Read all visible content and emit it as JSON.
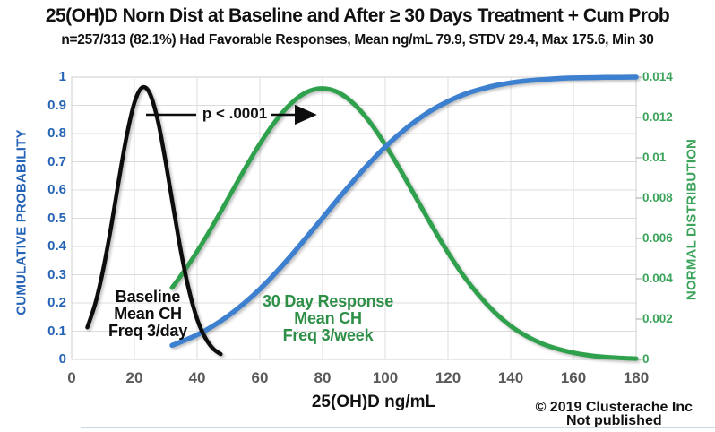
{
  "header": {
    "title": "25(OH)D Norn Dist at Baseline and After ≥ 30 Days Treatment + Cum Prob",
    "subtitle": "n=257/313 (82.1%) Had Favorable Responses, Mean ng/mL 79.9, STDV 29.4, Max 175.6, Min 30"
  },
  "chart_data": {
    "type": "line",
    "grid": true,
    "legend": "none",
    "x_axis": {
      "label": "25(OH)D ng/mL",
      "range": [
        0,
        180
      ],
      "tick_labels": [
        "0",
        "20",
        "40",
        "60",
        "80",
        "100",
        "120",
        "140",
        "160",
        "180"
      ]
    },
    "y_left": {
      "label": "CUMULATIVE PROBABILITY",
      "range": [
        0,
        1
      ],
      "tick_labels_top_to_bottom": [
        "1",
        "0.9",
        "0.8",
        "0.7",
        "0.6",
        "0.5",
        "0.4",
        "0.3",
        "0.2",
        "0.1",
        "0"
      ],
      "color": "#2463B5"
    },
    "y_right": {
      "label": "NORMAL DISTRIBUTION",
      "range": [
        0,
        0.014
      ],
      "tick_labels_top_to_bottom": [
        "0.014",
        "0.012",
        "0.01",
        "0.008",
        "0.006",
        "0.004",
        "0.002",
        "0"
      ],
      "color": "#3CA35B"
    },
    "series": [
      {
        "id": "response-dist-curve",
        "name": "30 Day Response normal distribution (Mean CH Freq 3/week)",
        "axis": "right",
        "color": "#2FA14D",
        "stroke_width": 5,
        "points": [
          [
            32,
            0.00356
          ],
          [
            35,
            0.00419
          ],
          [
            40,
            0.00535
          ],
          [
            45,
            0.00664
          ],
          [
            50,
            0.00801
          ],
          [
            55,
            0.00939
          ],
          [
            60,
            0.01069
          ],
          [
            65,
            0.01182
          ],
          [
            70,
            0.0127
          ],
          [
            75,
            0.01326
          ],
          [
            80,
            0.01344
          ],
          [
            85,
            0.01324
          ],
          [
            90,
            0.01267
          ],
          [
            95,
            0.01178
          ],
          [
            100,
            0.01064
          ],
          [
            105,
            0.00934
          ],
          [
            110,
            0.00796
          ],
          [
            115,
            0.00659
          ],
          [
            120,
            0.0053
          ],
          [
            125,
            0.00414
          ],
          [
            130,
            0.00315
          ],
          [
            135,
            0.00232
          ],
          [
            140,
            0.00166
          ],
          [
            145,
            0.00116
          ],
          [
            150,
            0.00078
          ],
          [
            155,
            0.00052
          ],
          [
            160,
            0.00033
          ],
          [
            165,
            0.0002
          ],
          [
            170,
            0.00012
          ],
          [
            175,
            7e-05
          ],
          [
            180,
            4e-05
          ]
        ]
      },
      {
        "id": "cumulative-prob-curve",
        "name": "Cumulative probability",
        "axis": "left",
        "color": "#3C80CF",
        "stroke_width": 5.5,
        "points": [
          [
            32,
            0.05
          ],
          [
            35,
            0.063
          ],
          [
            40,
            0.087
          ],
          [
            45,
            0.118
          ],
          [
            50,
            0.155
          ],
          [
            55,
            0.199
          ],
          [
            60,
            0.249
          ],
          [
            65,
            0.306
          ],
          [
            70,
            0.368
          ],
          [
            75,
            0.434
          ],
          [
            80,
            0.501
          ],
          [
            85,
            0.569
          ],
          [
            90,
            0.634
          ],
          [
            95,
            0.696
          ],
          [
            100,
            0.753
          ],
          [
            105,
            0.803
          ],
          [
            110,
            0.847
          ],
          [
            115,
            0.884
          ],
          [
            120,
            0.914
          ],
          [
            125,
            0.938
          ],
          [
            130,
            0.956
          ],
          [
            135,
            0.97
          ],
          [
            140,
            0.98
          ],
          [
            145,
            0.987
          ],
          [
            150,
            0.991
          ],
          [
            155,
            0.995
          ],
          [
            160,
            0.997
          ],
          [
            165,
            0.998
          ],
          [
            170,
            0.999
          ],
          [
            175,
            0.9995
          ],
          [
            180,
            1.0
          ]
        ]
      },
      {
        "id": "baseline-dist-curve",
        "name": "Baseline normal distribution (Mean CH Freq 3/day)",
        "axis": "right",
        "color": "#0d0d0d",
        "stroke_width": 4.5,
        "points": [
          [
            5,
            0.00159
          ],
          [
            7.5,
            0.00276
          ],
          [
            10,
            0.00442
          ],
          [
            12.5,
            0.00652
          ],
          [
            15,
            0.00885
          ],
          [
            17.5,
            0.01106
          ],
          [
            20,
            0.01273
          ],
          [
            22.5,
            0.01349
          ],
          [
            25,
            0.01316
          ],
          [
            27.5,
            0.01182
          ],
          [
            30,
            0.00977
          ],
          [
            32.5,
            0.00744
          ],
          [
            35,
            0.00522
          ],
          [
            37.5,
            0.00337
          ],
          [
            40,
            0.002
          ],
          [
            42.5,
            0.0011
          ],
          [
            45,
            0.00055
          ],
          [
            47.5,
            0.00026
          ]
        ]
      }
    ]
  },
  "annotations": {
    "p_value": "p < .0001",
    "baseline_label": {
      "lines": [
        "Baseline",
        "Mean CH",
        "Freq 3/day"
      ]
    },
    "response_label": {
      "lines": [
        "30 Day Response",
        "Mean CH",
        "Freq 3/week"
      ]
    }
  },
  "footer": {
    "copyright": "© 2019 Clusterache Inc",
    "note": "Not published"
  }
}
